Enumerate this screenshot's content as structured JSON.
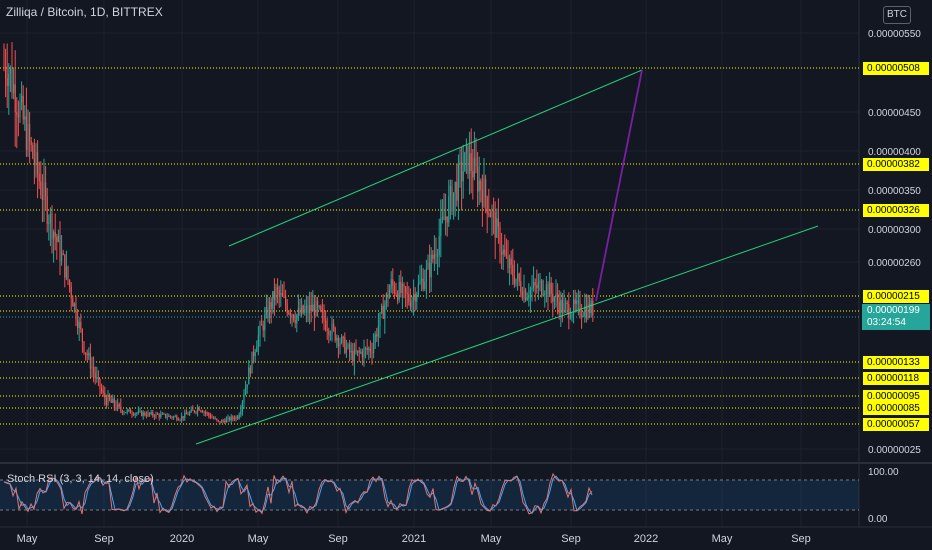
{
  "header": {
    "title": "Zilliqa / Bitcoin, 1D, BITTREX",
    "currency": "BTC"
  },
  "indicator": {
    "label": "Stoch RSI (3, 3, 14, 14, close)"
  },
  "price_axis": {
    "ticks": [
      "0.00000550",
      "0.00000450",
      "0.00000400",
      "0.00000350",
      "0.00000300",
      "0.00000260",
      "0.00000025"
    ],
    "levels": [
      "0.00000508",
      "0.00000382",
      "0.00000326",
      "0.00000215",
      "0.00000196",
      "0.00000133",
      "0.00000118",
      "0.00000095",
      "0.00000085",
      "0.00000057"
    ],
    "current_price": "0.00000199",
    "countdown": "03:24:54"
  },
  "rsi_axis": {
    "ticks": [
      "100.00",
      "0.00"
    ]
  },
  "time_axis": {
    "ticks": [
      "May",
      "Sep",
      "2020",
      "May",
      "Sep",
      "2021",
      "May",
      "Sep",
      "2022",
      "May",
      "Sep"
    ]
  },
  "colors": {
    "background": "#131722",
    "level_line": "#ffff00",
    "channel": "#26d07c",
    "projection": "#7b1fa2",
    "up": "#26a69a",
    "down": "#ef5350",
    "rsi_k": "#e57373",
    "rsi_d": "#42a5f5"
  },
  "chart_data": {
    "type": "candlestick",
    "symbol": "ZIL/BTC",
    "interval": "1D",
    "exchange": "BITTREX",
    "price_series": [
      {
        "date": "2019-04",
        "price": 5.1e-06
      },
      {
        "date": "2019-05",
        "price": 4.2e-06
      },
      {
        "date": "2019-06",
        "price": 3.3e-06
      },
      {
        "date": "2019-07",
        "price": 2.5e-06
      },
      {
        "date": "2019-08",
        "price": 1.5e-06
      },
      {
        "date": "2019-09",
        "price": 9.5e-07
      },
      {
        "date": "2019-10",
        "price": 8e-07
      },
      {
        "date": "2019-11",
        "price": 7.5e-07
      },
      {
        "date": "2019-12",
        "price": 7.2e-07
      },
      {
        "date": "2020-01",
        "price": 6.8e-07
      },
      {
        "date": "2020-02",
        "price": 8.5e-07
      },
      {
        "date": "2020-03",
        "price": 6e-07
      },
      {
        "date": "2020-04",
        "price": 7e-07
      },
      {
        "date": "2020-05",
        "price": 1.6e-06
      },
      {
        "date": "2020-06",
        "price": 2.2e-06
      },
      {
        "date": "2020-07",
        "price": 1.9e-06
      },
      {
        "date": "2020-08",
        "price": 2e-06
      },
      {
        "date": "2020-09",
        "price": 1.7e-06
      },
      {
        "date": "2020-10",
        "price": 1.4e-06
      },
      {
        "date": "2020-11",
        "price": 1.5e-06
      },
      {
        "date": "2020-12",
        "price": 2.3e-06
      },
      {
        "date": "2021-01",
        "price": 2.1e-06
      },
      {
        "date": "2021-02",
        "price": 2.5e-06
      },
      {
        "date": "2021-03",
        "price": 3.3e-06
      },
      {
        "date": "2021-04",
        "price": 3.9e-06
      },
      {
        "date": "2021-05",
        "price": 3.4e-06
      },
      {
        "date": "2021-06",
        "price": 2.6e-06
      },
      {
        "date": "2021-07",
        "price": 2.2e-06
      },
      {
        "date": "2021-08",
        "price": 2.3e-06
      },
      {
        "date": "2021-09",
        "price": 1.99e-06
      }
    ],
    "horizontal_levels": [
      5.08e-06,
      3.82e-06,
      3.26e-06,
      2.15e-06,
      1.96e-06,
      1.33e-06,
      1.18e-06,
      9.5e-07,
      8.5e-07,
      5.7e-07
    ],
    "current_price": 1.99e-06,
    "rsi": {
      "name": "Stoch RSI",
      "range": [
        0,
        100
      ],
      "bands": [
        80,
        20
      ]
    },
    "grid": true
  }
}
